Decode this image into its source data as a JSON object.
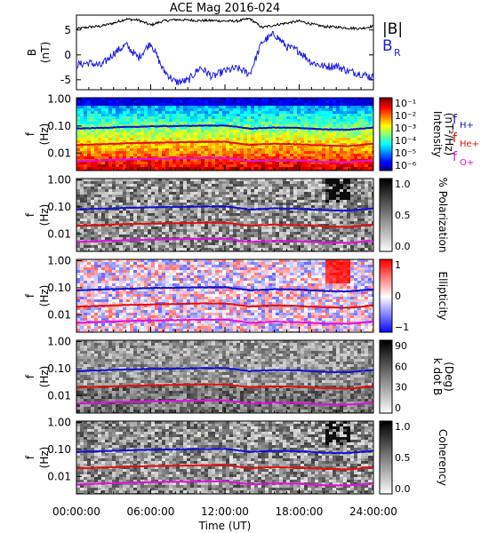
{
  "title": "ACE Mag 2016-024",
  "xlabel": "Time (UT)",
  "x_ticks": [
    "00:00:00",
    "06:00:00",
    "12:00:00",
    "18:00:00",
    "24:00:00"
  ],
  "colors": {
    "B_total": "#000000",
    "B_R": "#1a1ae6",
    "f_H": "#1010d0",
    "f_He": "#e01010",
    "f_O": "#e010e0"
  },
  "chart_data": [
    {
      "type": "line",
      "panel": "B",
      "ylabel": "B",
      "yunit": "(nT)",
      "ylim": [
        -7,
        8
      ],
      "y_ticks": [
        "5",
        "0",
        "-5"
      ],
      "x": [
        0,
        1,
        2,
        3,
        4,
        5,
        6,
        7,
        8,
        9,
        10,
        11,
        12,
        13,
        14,
        15,
        16,
        17,
        18,
        19,
        20,
        21,
        22,
        23,
        24
      ],
      "series": [
        {
          "name": "|B|",
          "values": [
            5.2,
            5.6,
            5.8,
            6.4,
            7.2,
            7.0,
            6.0,
            6.8,
            7.1,
            7.0,
            6.9,
            6.9,
            6.8,
            6.8,
            7.3,
            5.5,
            6.0,
            6.4,
            6.8,
            6.2,
            5.7,
            5.6,
            5.4,
            5.3,
            5.8
          ]
        },
        {
          "name": "B_R",
          "values": [
            -2.0,
            -1.6,
            -2.2,
            0.3,
            2.0,
            -0.6,
            2.5,
            -3.0,
            -5.5,
            -5.2,
            -2.5,
            -4.4,
            -3.2,
            -2.7,
            -3.8,
            2.6,
            4.2,
            1.6,
            0.8,
            -1.5,
            -2.3,
            -2.2,
            -3.3,
            -3.8,
            -4.5
          ]
        }
      ],
      "legend": [
        "|B|",
        "B",
        "R"
      ]
    },
    {
      "type": "heatmap",
      "panel": "Intensity",
      "ylabel": "f",
      "yunit": "(Hz)",
      "y_ticks": [
        "1.00",
        "0.10",
        "0.01"
      ],
      "cbar_label": "Intensity",
      "cbar_unit": "(nT²/Hz)",
      "cbar_ticks": [
        "10⁻¹",
        "10⁻²",
        "10⁻³",
        "10⁻⁴",
        "10⁻⁵",
        "10⁻⁶"
      ],
      "legend": [
        "f",
        "H+",
        "f",
        "He+",
        "f",
        "O+"
      ]
    },
    {
      "type": "heatmap",
      "panel": "Polarization",
      "ylabel": "f",
      "yunit": "(Hz)",
      "y_ticks": [
        "1.00",
        "0.10",
        "0.01"
      ],
      "cbar_label": "% Polarization",
      "cbar_ticks": [
        "1.0",
        "0.5",
        "0.0"
      ]
    },
    {
      "type": "heatmap",
      "panel": "Ellipticity",
      "ylabel": "f",
      "yunit": "(Hz)",
      "y_ticks": [
        "1.00",
        "0.10",
        "0.01"
      ],
      "cbar_label": "Ellipticity",
      "cbar_ticks": [
        "1",
        "0",
        "−1"
      ]
    },
    {
      "type": "heatmap",
      "panel": "kdotB",
      "ylabel": "f",
      "yunit": "(Hz)",
      "y_ticks": [
        "1.00",
        "0.10",
        "0.01"
      ],
      "cbar_label": "k dot B",
      "cbar_unit": "(Deg)",
      "cbar_ticks": [
        "90",
        "60",
        "30",
        "0"
      ]
    },
    {
      "type": "heatmap",
      "panel": "Coherency",
      "ylabel": "f",
      "yunit": "(Hz)",
      "y_ticks": [
        "1.00",
        "0.10",
        "0.01"
      ],
      "cbar_label": "Coherency",
      "cbar_ticks": [
        "1.0",
        "0.5",
        "0.0"
      ]
    },
    {
      "type": "line",
      "panel": "gyrofrequencies",
      "x": [
        0,
        2,
        4,
        6,
        8,
        10,
        12,
        14,
        16,
        18,
        20,
        22,
        24
      ],
      "series": [
        {
          "name": "f_H+",
          "values": [
            0.08,
            0.086,
            0.092,
            0.097,
            0.1,
            0.103,
            0.105,
            0.08,
            0.088,
            0.085,
            0.075,
            0.073,
            0.088
          ]
        },
        {
          "name": "f_He+",
          "values": [
            0.02,
            0.021,
            0.023,
            0.024,
            0.025,
            0.026,
            0.026,
            0.02,
            0.022,
            0.021,
            0.019,
            0.018,
            0.022
          ]
        },
        {
          "name": "f_O+",
          "values": [
            0.005,
            0.0054,
            0.0058,
            0.0061,
            0.0063,
            0.0065,
            0.0066,
            0.005,
            0.0055,
            0.0053,
            0.0047,
            0.0046,
            0.0055
          ]
        }
      ]
    }
  ]
}
